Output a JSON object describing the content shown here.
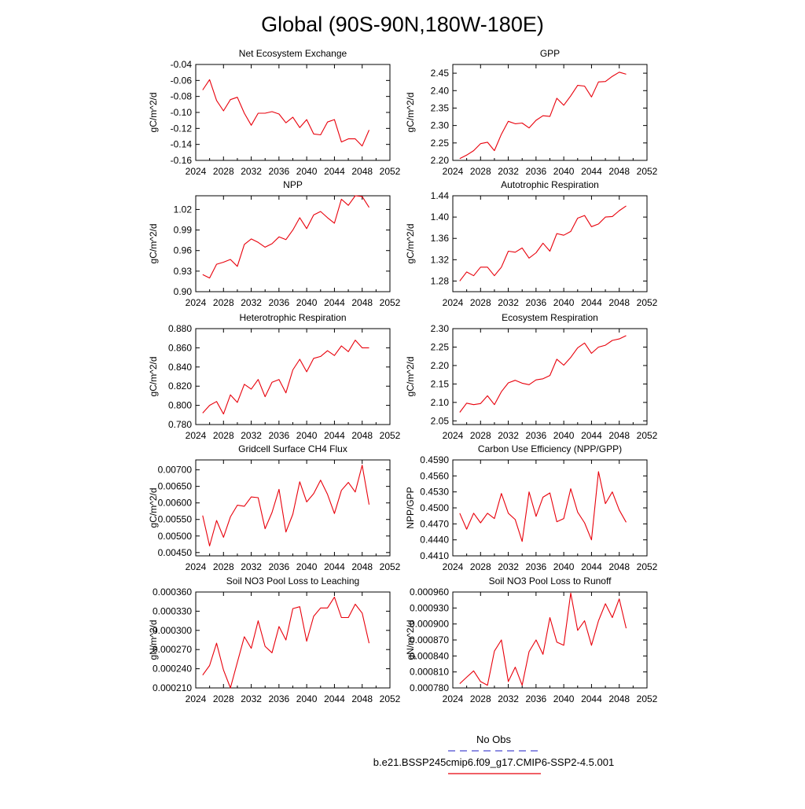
{
  "figure": {
    "title": "Global (90S-90N,180W-180E)",
    "series_color": "#e8000b",
    "legend": [
      {
        "label": "No Obs",
        "color": "#4b4bd1",
        "style": "dashed"
      },
      {
        "label": "b.e21.BSSP245cmip6.f09_g17.CMIP6-SSP2-4.5.001",
        "color": "#e8000b",
        "style": "solid"
      }
    ]
  },
  "chart_data": [
    {
      "type": "line",
      "title": "Net Ecosystem Exchange",
      "ylabel": "gC/m^2/d",
      "xlim": [
        2024,
        2052
      ],
      "ylim": [
        -0.16,
        -0.04
      ],
      "xticks": [
        "2024",
        "2028",
        "2032",
        "2036",
        "2040",
        "2044",
        "2048",
        "2052"
      ],
      "yticks": [
        "-0.160",
        "-0.140",
        "-0.120",
        "-0.100",
        "-0.080",
        "-0.060",
        "-0.040"
      ],
      "ytick_labels": [
        "-0.16",
        "-0.14",
        "-0.12",
        "-0.10",
        "-0.08",
        "-0.06",
        "-0.04"
      ],
      "x": [
        2025,
        2026,
        2027,
        2028,
        2029,
        2030,
        2031,
        2032,
        2033,
        2034,
        2035,
        2036,
        2037,
        2038,
        2039,
        2040,
        2041,
        2042,
        2043,
        2044,
        2045,
        2046,
        2047,
        2048,
        2049
      ],
      "values": [
        -0.072,
        -0.059,
        -0.085,
        -0.098,
        -0.084,
        -0.081,
        -0.101,
        -0.116,
        -0.101,
        -0.101,
        -0.099,
        -0.102,
        -0.113,
        -0.106,
        -0.119,
        -0.109,
        -0.127,
        -0.128,
        -0.112,
        -0.109,
        -0.137,
        -0.133,
        -0.133,
        -0.142,
        -0.122
      ]
    },
    {
      "type": "line",
      "title": "GPP",
      "ylabel": "gC/m^2/d",
      "xlim": [
        2024,
        2052
      ],
      "ylim": [
        2.2,
        2.475
      ],
      "xticks": [
        "2024",
        "2028",
        "2032",
        "2036",
        "2040",
        "2044",
        "2048",
        "2052"
      ],
      "yticks": [
        "2.20",
        "2.25",
        "2.30",
        "2.35",
        "2.40",
        "2.45"
      ],
      "ytick_labels": [
        "2.20",
        "2.25",
        "2.30",
        "2.35",
        "2.40",
        "2.45"
      ],
      "x": [
        2025,
        2026,
        2027,
        2028,
        2029,
        2030,
        2031,
        2032,
        2033,
        2034,
        2035,
        2036,
        2037,
        2038,
        2039,
        2040,
        2041,
        2042,
        2043,
        2044,
        2045,
        2046,
        2047,
        2048,
        2049
      ],
      "values": [
        2.205,
        2.215,
        2.228,
        2.248,
        2.252,
        2.228,
        2.275,
        2.312,
        2.305,
        2.307,
        2.293,
        2.315,
        2.328,
        2.326,
        2.378,
        2.358,
        2.385,
        2.415,
        2.413,
        2.382,
        2.425,
        2.426,
        2.441,
        2.453,
        2.447
      ]
    },
    {
      "type": "line",
      "title": "NPP",
      "ylabel": "gC/m^2/d",
      "xlim": [
        2024,
        2052
      ],
      "ylim": [
        0.9,
        1.04
      ],
      "xticks": [
        "2024",
        "2028",
        "2032",
        "2036",
        "2040",
        "2044",
        "2048",
        "2052"
      ],
      "yticks": [
        "0.90",
        "0.93",
        "0.96",
        "0.99",
        "1.02"
      ],
      "ytick_labels": [
        "0.90",
        "0.93",
        "0.96",
        "0.99",
        "1.02"
      ],
      "x": [
        2025,
        2026,
        2027,
        2028,
        2029,
        2030,
        2031,
        2032,
        2033,
        2034,
        2035,
        2036,
        2037,
        2038,
        2039,
        2040,
        2041,
        2042,
        2043,
        2044,
        2045,
        2046,
        2047,
        2048,
        2049
      ],
      "values": [
        0.925,
        0.92,
        0.94,
        0.943,
        0.947,
        0.937,
        0.969,
        0.977,
        0.972,
        0.965,
        0.97,
        0.98,
        0.976,
        0.99,
        1.008,
        0.992,
        1.012,
        1.017,
        1.008,
        1.0,
        1.035,
        1.026,
        1.04,
        1.039,
        1.023
      ]
    },
    {
      "type": "line",
      "title": "Autotrophic Respiration",
      "ylabel": "gC/m^2/d",
      "xlim": [
        2024,
        2052
      ],
      "ylim": [
        1.26,
        1.44
      ],
      "xticks": [
        "2024",
        "2028",
        "2032",
        "2036",
        "2040",
        "2044",
        "2048",
        "2052"
      ],
      "yticks": [
        "1.28",
        "1.32",
        "1.36",
        "1.40",
        "1.44"
      ],
      "ytick_labels": [
        "1.28",
        "1.32",
        "1.36",
        "1.40",
        "1.44"
      ],
      "x": [
        2025,
        2026,
        2027,
        2028,
        2029,
        2030,
        2031,
        2032,
        2033,
        2034,
        2035,
        2036,
        2037,
        2038,
        2039,
        2040,
        2041,
        2042,
        2043,
        2044,
        2045,
        2046,
        2047,
        2048,
        2049
      ],
      "values": [
        1.28,
        1.297,
        1.29,
        1.306,
        1.306,
        1.29,
        1.306,
        1.336,
        1.334,
        1.342,
        1.323,
        1.333,
        1.351,
        1.336,
        1.369,
        1.366,
        1.373,
        1.398,
        1.403,
        1.382,
        1.387,
        1.4,
        1.401,
        1.412,
        1.421
      ]
    },
    {
      "type": "line",
      "title": "Heterotrophic Respiration",
      "ylabel": "gC/m^2/d",
      "xlim": [
        2024,
        2052
      ],
      "ylim": [
        0.78,
        0.88
      ],
      "xticks": [
        "2024",
        "2028",
        "2032",
        "2036",
        "2040",
        "2044",
        "2048",
        "2052"
      ],
      "yticks": [
        "0.780",
        "0.800",
        "0.820",
        "0.840",
        "0.860",
        "0.880"
      ],
      "ytick_labels": [
        "0.780",
        "0.800",
        "0.820",
        "0.840",
        "0.860",
        "0.880"
      ],
      "x": [
        2025,
        2026,
        2027,
        2028,
        2029,
        2030,
        2031,
        2032,
        2033,
        2034,
        2035,
        2036,
        2037,
        2038,
        2039,
        2040,
        2041,
        2042,
        2043,
        2044,
        2045,
        2046,
        2047,
        2048,
        2049
      ],
      "values": [
        0.792,
        0.8,
        0.804,
        0.791,
        0.811,
        0.803,
        0.822,
        0.817,
        0.827,
        0.809,
        0.824,
        0.827,
        0.813,
        0.837,
        0.848,
        0.835,
        0.849,
        0.851,
        0.857,
        0.852,
        0.862,
        0.856,
        0.868,
        0.86,
        0.86
      ]
    },
    {
      "type": "line",
      "title": "Ecosystem Respiration",
      "ylabel": "gC/m^2/d",
      "xlim": [
        2024,
        2052
      ],
      "ylim": [
        2.04,
        2.3
      ],
      "xticks": [
        "2024",
        "2028",
        "2032",
        "2036",
        "2040",
        "2044",
        "2048",
        "2052"
      ],
      "yticks": [
        "2.05",
        "2.10",
        "2.15",
        "2.20",
        "2.25",
        "2.30"
      ],
      "ytick_labels": [
        "2.05",
        "2.10",
        "2.15",
        "2.20",
        "2.25",
        "2.30"
      ],
      "x": [
        2025,
        2026,
        2027,
        2028,
        2029,
        2030,
        2031,
        2032,
        2033,
        2034,
        2035,
        2036,
        2037,
        2038,
        2039,
        2040,
        2041,
        2042,
        2043,
        2044,
        2045,
        2046,
        2047,
        2048,
        2049
      ],
      "values": [
        2.073,
        2.098,
        2.094,
        2.097,
        2.118,
        2.094,
        2.129,
        2.153,
        2.16,
        2.152,
        2.148,
        2.161,
        2.164,
        2.173,
        2.217,
        2.201,
        2.222,
        2.248,
        2.261,
        2.233,
        2.25,
        2.255,
        2.268,
        2.272,
        2.281
      ]
    },
    {
      "type": "line",
      "title": "Gridcell Surface CH4 Flux",
      "ylabel": "gC/m^2/d",
      "xlim": [
        2024,
        2052
      ],
      "ylim": [
        0.0044,
        0.0073
      ],
      "xticks": [
        "2024",
        "2028",
        "2032",
        "2036",
        "2040",
        "2044",
        "2048",
        "2052"
      ],
      "yticks": [
        "0.00450",
        "0.00500",
        "0.00550",
        "0.00600",
        "0.00650",
        "0.00700"
      ],
      "ytick_labels": [
        "0.00450",
        "0.00500",
        "0.00550",
        "0.00600",
        "0.00650",
        "0.00700"
      ],
      "x": [
        2025,
        2026,
        2027,
        2028,
        2029,
        2030,
        2031,
        2032,
        2033,
        2034,
        2035,
        2036,
        2037,
        2038,
        2039,
        2040,
        2041,
        2042,
        2043,
        2044,
        2045,
        2046,
        2047,
        2048,
        2049
      ],
      "values": [
        0.00562,
        0.0047,
        0.00547,
        0.00496,
        0.00558,
        0.00593,
        0.0059,
        0.00618,
        0.00616,
        0.00522,
        0.00571,
        0.00641,
        0.00512,
        0.00566,
        0.00664,
        0.00603,
        0.00628,
        0.00669,
        0.00626,
        0.00568,
        0.00638,
        0.00662,
        0.00633,
        0.00714,
        0.00595
      ]
    },
    {
      "type": "line",
      "title": "Carbon Use Efficiency (NPP/GPP)",
      "ylabel": "NPP/GPP",
      "xlim": [
        2024,
        2052
      ],
      "ylim": [
        0.441,
        0.459
      ],
      "xticks": [
        "2024",
        "2028",
        "2032",
        "2036",
        "2040",
        "2044",
        "2048",
        "2052"
      ],
      "yticks": [
        "0.4410",
        "0.4440",
        "0.4470",
        "0.4500",
        "0.4530",
        "0.4560",
        "0.4590"
      ],
      "ytick_labels": [
        "0.4410",
        "0.4440",
        "0.4470",
        "0.4500",
        "0.4530",
        "0.4560",
        "0.4590"
      ],
      "x": [
        2025,
        2026,
        2027,
        2028,
        2029,
        2030,
        2031,
        2032,
        2033,
        2034,
        2035,
        2036,
        2037,
        2038,
        2039,
        2040,
        2041,
        2042,
        2043,
        2044,
        2045,
        2046,
        2047,
        2048,
        2049
      ],
      "values": [
        0.449,
        0.446,
        0.449,
        0.4472,
        0.449,
        0.448,
        0.4527,
        0.449,
        0.4478,
        0.4437,
        0.453,
        0.4484,
        0.452,
        0.4528,
        0.4474,
        0.448,
        0.4536,
        0.4492,
        0.4472,
        0.444,
        0.4568,
        0.4508,
        0.453,
        0.4496,
        0.4473
      ]
    },
    {
      "type": "line",
      "title": "Soil NO3 Pool Loss to Leaching",
      "ylabel": "gN/m^2/d",
      "xlim": [
        2024,
        2052
      ],
      "ylim": [
        0.00021,
        0.00036
      ],
      "xticks": [
        "2024",
        "2028",
        "2032",
        "2036",
        "2040",
        "2044",
        "2048",
        "2052"
      ],
      "yticks": [
        "0.000210",
        "0.000240",
        "0.000270",
        "0.000300",
        "0.000330",
        "0.000360"
      ],
      "ytick_labels": [
        "0.000210",
        "0.000240",
        "0.000270",
        "0.000300",
        "0.000330",
        "0.000360"
      ],
      "x": [
        2025,
        2026,
        2027,
        2028,
        2029,
        2030,
        2031,
        2032,
        2033,
        2034,
        2035,
        2036,
        2037,
        2038,
        2039,
        2040,
        2041,
        2042,
        2043,
        2044,
        2045,
        2046,
        2047,
        2048,
        2049
      ],
      "values": [
        0.00023,
        0.000245,
        0.00028,
        0.000238,
        0.00021,
        0.00025,
        0.00029,
        0.000272,
        0.000315,
        0.000275,
        0.000265,
        0.000306,
        0.000285,
        0.000334,
        0.000337,
        0.000283,
        0.000322,
        0.000335,
        0.000335,
        0.000352,
        0.00032,
        0.00032,
        0.000341,
        0.000327,
        0.00028
      ]
    },
    {
      "type": "line",
      "title": "Soil NO3 Pool Loss to Runoff",
      "ylabel": "gN/m^2/d",
      "xlim": [
        2024,
        2052
      ],
      "ylim": [
        0.00078,
        0.00096
      ],
      "xticks": [
        "2024",
        "2028",
        "2032",
        "2036",
        "2040",
        "2044",
        "2048",
        "2052"
      ],
      "yticks": [
        "0.000780",
        "0.000810",
        "0.000840",
        "0.000870",
        "0.000900",
        "0.000930",
        "0.000960"
      ],
      "ytick_labels": [
        "0.000780",
        "0.000810",
        "0.000840",
        "0.000870",
        "0.000900",
        "0.000930",
        "0.000960"
      ],
      "x": [
        2025,
        2026,
        2027,
        2028,
        2029,
        2030,
        2031,
        2032,
        2033,
        2034,
        2035,
        2036,
        2037,
        2038,
        2039,
        2040,
        2041,
        2042,
        2043,
        2044,
        2045,
        2046,
        2047,
        2048,
        2049
      ],
      "values": [
        0.000788,
        0.0008,
        0.000812,
        0.000792,
        0.000785,
        0.000849,
        0.00087,
        0.000792,
        0.000819,
        0.000785,
        0.000848,
        0.00087,
        0.000843,
        0.000912,
        0.000866,
        0.00086,
        0.000958,
        0.000888,
        0.000906,
        0.00086,
        0.000906,
        0.000938,
        0.000912,
        0.000947,
        0.000892
      ]
    }
  ]
}
